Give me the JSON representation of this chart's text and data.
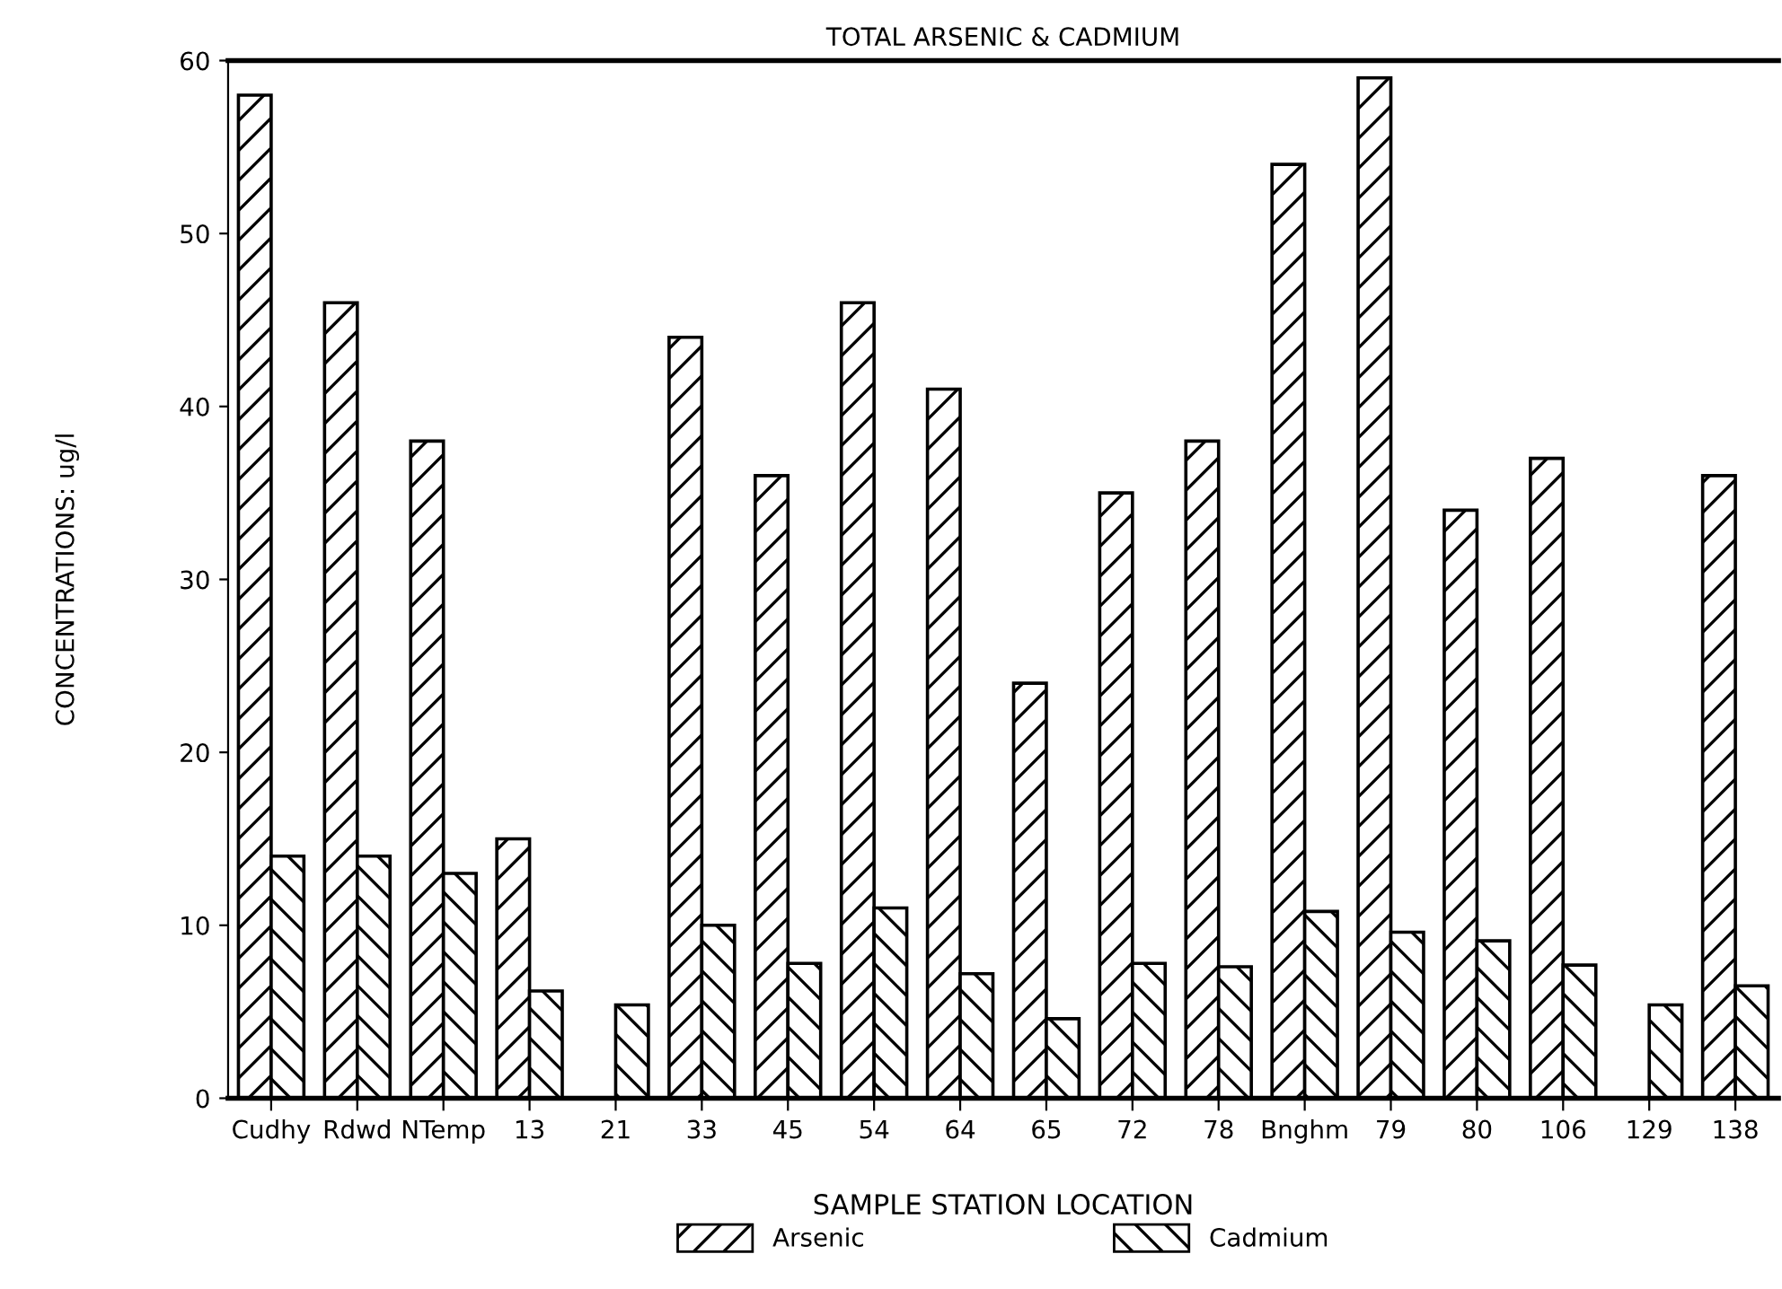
{
  "chart_data": {
    "type": "bar",
    "title": "TOTAL ARSENIC & CADMIUM",
    "xlabel": "SAMPLE STATION LOCATION",
    "ylabel": "CONCENTRATIONS: ug/l",
    "categories": [
      "Cudhy",
      "Rdwd",
      "NTemp",
      "13",
      "21",
      "33",
      "45",
      "54",
      "64",
      "65",
      "72",
      "78",
      "Bnghm",
      "79",
      "80",
      "106",
      "129",
      "138"
    ],
    "series": [
      {
        "name": "Arsenic",
        "color": "#000000",
        "values": [
          58,
          46,
          38,
          15,
          null,
          44,
          36,
          46,
          41,
          24,
          35,
          38,
          54,
          59,
          34,
          37,
          null,
          36
        ]
      },
      {
        "name": "Cadmium",
        "color": "#000000",
        "values": [
          14,
          14,
          13,
          6.2,
          5.4,
          10,
          7.8,
          11,
          7.2,
          4.6,
          7.8,
          7.6,
          10.8,
          9.6,
          9.1,
          7.7,
          5.4,
          6.5
        ]
      }
    ],
    "ylim": [
      0,
      60
    ],
    "yticks": [
      0,
      10,
      20,
      30,
      40,
      50,
      60
    ],
    "grid": false,
    "legend": "bottom"
  }
}
